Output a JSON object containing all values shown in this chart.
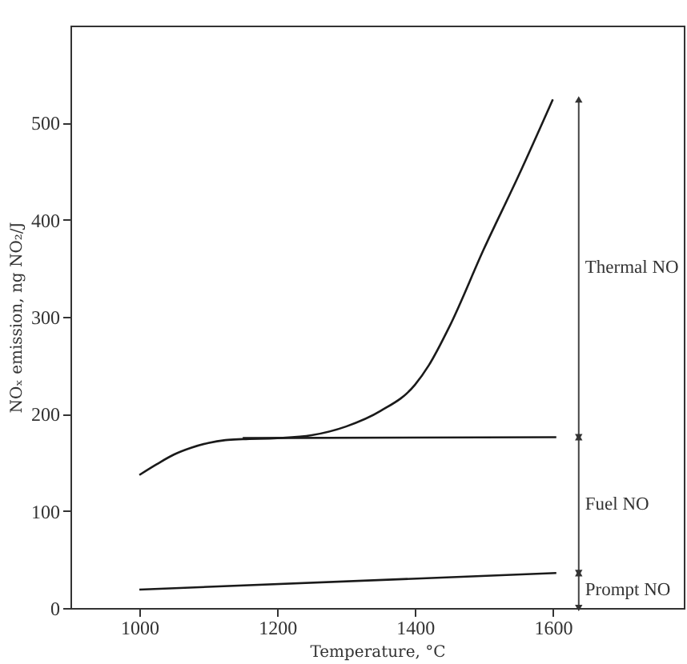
{
  "chart_data": {
    "type": "line",
    "xlabel": "Temperature, °C",
    "ylabel": "NOₓ emission, ng NO₂/J",
    "xlim": [
      900,
      1790
    ],
    "ylim": [
      0,
      600
    ],
    "xticks": [
      1000,
      1200,
      1400,
      1600
    ],
    "yticks": [
      0,
      100,
      200,
      300,
      400,
      500
    ],
    "grid": false,
    "marker": "none",
    "line_style": "solid",
    "series": [
      {
        "color": "#1a1a1a",
        "x": [
          1000,
          1025,
          1050,
          1075,
          1100,
          1125,
          1150,
          1200,
          1250,
          1300,
          1350,
          1400,
          1420,
          1450,
          1500,
          1550,
          1600
        ],
        "values": [
          137,
          148,
          158,
          165,
          170,
          173,
          174,
          175,
          178,
          187,
          203,
          230,
          250,
          290,
          370,
          445,
          524
        ]
      },
      {
        "color": "#1a1a1a",
        "x": [
          1150,
          1605
        ],
        "values": [
          175,
          176
        ]
      },
      {
        "color": "#1a1a1a",
        "x": [
          1000,
          1605
        ],
        "values": [
          19,
          36
        ]
      }
    ],
    "annotations": [
      "Thermal NO",
      "Fuel NO",
      "Prompt NO"
    ]
  }
}
